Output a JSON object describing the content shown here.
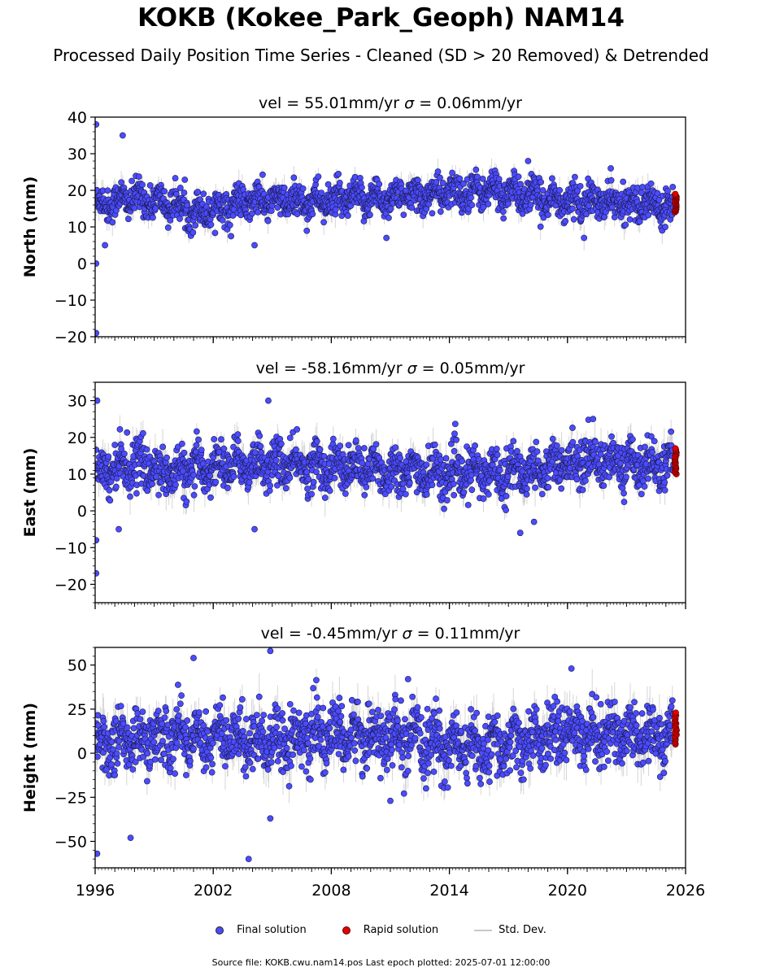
{
  "title": "KOKB (Kokee_Park_Geoph) NAM14",
  "subtitle": "Processed Daily Position Time Series - Cleaned (SD > 20 Removed) & Detrended",
  "legend": {
    "final": "Final solution",
    "rapid": "Rapid solution",
    "std": "Std. Dev."
  },
  "footer": "Source file: KOKB.cwu.nam14.pos  Last epoch plotted: 2025-07-01 12:00:00",
  "colors": {
    "final": "#4b4bff",
    "rapid": "#e00000",
    "std": "#c8c8c8"
  },
  "chart_data": [
    {
      "type": "scatter",
      "component": "north",
      "panel_title_prefix": "vel = 55.01mm/yr",
      "panel_title_sigma": "= 0.06mm/yr",
      "ylabel": "North (mm)",
      "xlim": [
        1996,
        2026
      ],
      "ylim": [
        -20,
        40
      ],
      "yticks": [
        -20,
        -10,
        0,
        10,
        20,
        30,
        40
      ],
      "ytick_labels": [
        "−20",
        "−10",
        "0",
        "10",
        "20",
        "30",
        "40"
      ],
      "series": [
        {
          "name": "Final solution",
          "mean_trend": [
            [
              1996,
              16
            ],
            [
              1998,
              18
            ],
            [
              2000,
              16
            ],
            [
              2001,
              14
            ],
            [
              2004,
              17
            ],
            [
              2008,
              17
            ],
            [
              2016,
              20
            ],
            [
              2020,
              17
            ],
            [
              2025.4,
              16
            ]
          ],
          "spread": 3,
          "outliers": [
            [
              1996.05,
              38
            ],
            [
              1996.05,
              0
            ],
            [
              1996.05,
              -19
            ],
            [
              1997.4,
              35
            ],
            [
              1996.5,
              5
            ],
            [
              2004.1,
              5
            ],
            [
              2018.0,
              28
            ],
            [
              2022.2,
              26
            ],
            [
              2010.8,
              7
            ]
          ]
        },
        {
          "name": "Rapid solution",
          "x_range": [
            2025.45,
            2025.55
          ],
          "y_range": [
            14,
            19
          ]
        }
      ]
    },
    {
      "type": "scatter",
      "component": "east",
      "panel_title_prefix": "vel = -58.16mm/yr",
      "panel_title_sigma": "= 0.05mm/yr",
      "ylabel": "East (mm)",
      "xlim": [
        1996,
        2026
      ],
      "ylim": [
        -25,
        35
      ],
      "yticks": [
        -20,
        -10,
        0,
        10,
        20,
        30
      ],
      "ytick_labels": [
        "−20",
        "−10",
        "0",
        "10",
        "20",
        "30"
      ],
      "series": [
        {
          "name": "Final solution",
          "mean_trend": [
            [
              1996,
              11
            ],
            [
              1998,
              13
            ],
            [
              2000,
              10
            ],
            [
              2002,
              12
            ],
            [
              2004,
              13
            ],
            [
              2008,
              12
            ],
            [
              2014,
              10
            ],
            [
              2018,
              11
            ],
            [
              2021,
              14
            ],
            [
              2025.4,
              12
            ]
          ],
          "spread": 4,
          "outliers": [
            [
              1996.1,
              30
            ],
            [
              1996.05,
              -8
            ],
            [
              1996.05,
              -17
            ],
            [
              2004.8,
              30
            ],
            [
              2004.1,
              -5
            ],
            [
              1997.2,
              -5
            ],
            [
              2021.3,
              25
            ],
            [
              2017.6,
              -6
            ],
            [
              2018.3,
              -3
            ]
          ]
        },
        {
          "name": "Rapid solution",
          "x_range": [
            2025.45,
            2025.55
          ],
          "y_range": [
            10,
            17
          ]
        }
      ]
    },
    {
      "type": "scatter",
      "component": "height",
      "panel_title_prefix": "vel = -0.45mm/yr",
      "panel_title_sigma": "= 0.11mm/yr",
      "ylabel": "Height (mm)",
      "xlim": [
        1996,
        2026
      ],
      "ylim": [
        -65,
        60
      ],
      "yticks": [
        -50,
        -25,
        0,
        25,
        50
      ],
      "ytick_labels": [
        "−50",
        "−25",
        "0",
        "25",
        "50"
      ],
      "xticks": [
        1996,
        2002,
        2008,
        2014,
        2020,
        2026
      ],
      "xtick_labels": [
        "1996",
        "2002",
        "2008",
        "2014",
        "2020",
        "2026"
      ],
      "series": [
        {
          "name": "Final solution",
          "mean_trend": [
            [
              1996,
              5
            ],
            [
              2000,
              10
            ],
            [
              2004,
              8
            ],
            [
              2010,
              10
            ],
            [
              2016,
              2
            ],
            [
              2020,
              12
            ],
            [
              2025.4,
              10
            ]
          ],
          "spread": 11,
          "outliers": [
            [
              1996.1,
              -57
            ],
            [
              2003.8,
              -60
            ],
            [
              2004.9,
              -37
            ],
            [
              1997.8,
              -48
            ],
            [
              2001.0,
              54
            ],
            [
              2004.9,
              58
            ],
            [
              2020.2,
              48
            ],
            [
              2011.0,
              -27
            ],
            [
              2011.9,
              42
            ]
          ]
        },
        {
          "name": "Rapid solution",
          "x_range": [
            2025.45,
            2025.55
          ],
          "y_range": [
            5,
            23
          ]
        }
      ]
    }
  ]
}
